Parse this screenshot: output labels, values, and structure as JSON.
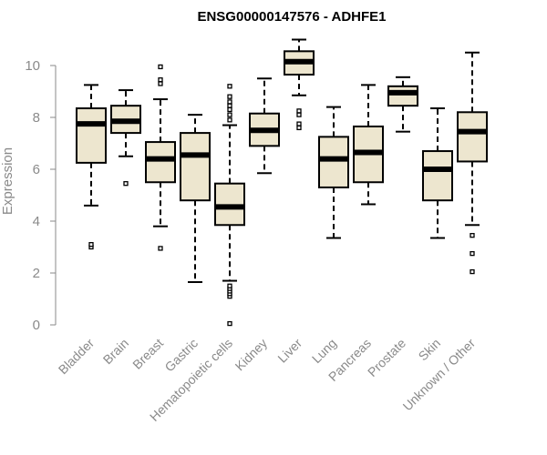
{
  "chart_data": {
    "type": "box",
    "title": "ENSG00000147576 - ADHFE1",
    "xlabel": "",
    "ylabel": "Expression",
    "ylim": [
      0,
      10.5
    ],
    "yticks": [
      0,
      2,
      4,
      6,
      8,
      10
    ],
    "grid": false,
    "colors": {
      "box_fill": "#ede6cf",
      "stroke": "#000000",
      "axis": "#8a8a8a"
    },
    "categories": [
      "Bladder",
      "Brain",
      "Breast",
      "Gastric",
      "Hematopoietic cells",
      "Kidney",
      "Liver",
      "Lung",
      "Pancreas",
      "Prostate",
      "Skin",
      "Unknown / Other"
    ],
    "boxes": [
      {
        "category": "Bladder",
        "q1": 6.25,
        "median": 7.75,
        "q3": 8.35,
        "whisker_low": 4.6,
        "whisker_high": 9.25,
        "outliers": [
          3.0,
          3.1
        ]
      },
      {
        "category": "Brain",
        "q1": 7.4,
        "median": 7.85,
        "q3": 8.45,
        "whisker_low": 6.5,
        "whisker_high": 9.05,
        "outliers": [
          5.45
        ]
      },
      {
        "category": "Breast",
        "q1": 5.5,
        "median": 6.4,
        "q3": 7.05,
        "whisker_low": 3.8,
        "whisker_high": 8.7,
        "outliers": [
          2.95,
          9.3,
          9.45,
          9.95
        ]
      },
      {
        "category": "Gastric",
        "q1": 4.8,
        "median": 6.55,
        "q3": 7.4,
        "whisker_low": 1.65,
        "whisker_high": 8.1,
        "outliers": []
      },
      {
        "category": "Hematopoietic cells",
        "q1": 3.85,
        "median": 4.55,
        "q3": 5.45,
        "whisker_low": 1.7,
        "whisker_high": 7.7,
        "outliers": [
          0.05,
          1.1,
          1.2,
          1.3,
          1.4,
          1.5,
          7.9,
          8.1,
          8.3,
          8.45,
          8.6,
          8.8,
          9.2
        ]
      },
      {
        "category": "Kidney",
        "q1": 6.9,
        "median": 7.5,
        "q3": 8.15,
        "whisker_low": 5.85,
        "whisker_high": 9.5,
        "outliers": []
      },
      {
        "category": "Liver",
        "q1": 9.65,
        "median": 10.15,
        "q3": 10.55,
        "whisker_low": 8.85,
        "whisker_high": 11.0,
        "outliers": [
          7.6,
          7.75,
          8.1,
          8.25
        ]
      },
      {
        "category": "Lung",
        "q1": 5.3,
        "median": 6.4,
        "q3": 7.25,
        "whisker_low": 3.35,
        "whisker_high": 8.4,
        "outliers": []
      },
      {
        "category": "Pancreas",
        "q1": 5.5,
        "median": 6.65,
        "q3": 7.65,
        "whisker_low": 4.65,
        "whisker_high": 9.25,
        "outliers": []
      },
      {
        "category": "Prostate",
        "q1": 8.45,
        "median": 8.95,
        "q3": 9.2,
        "whisker_low": 7.45,
        "whisker_high": 9.55,
        "outliers": []
      },
      {
        "category": "Skin",
        "q1": 4.8,
        "median": 6.0,
        "q3": 6.7,
        "whisker_low": 3.35,
        "whisker_high": 8.35,
        "outliers": []
      },
      {
        "category": "Unknown / Other",
        "q1": 6.3,
        "median": 7.45,
        "q3": 8.2,
        "whisker_low": 3.85,
        "whisker_high": 10.5,
        "outliers": [
          2.05,
          2.75,
          3.45
        ]
      }
    ]
  }
}
